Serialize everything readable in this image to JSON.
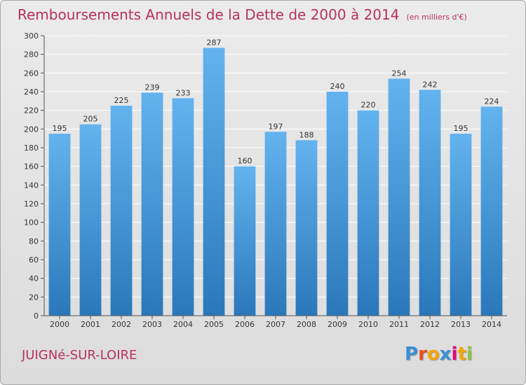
{
  "header": {
    "title": "Remboursements Annuels de la Dette de 2000 à 2014",
    "unit": "(en milliers d'€)"
  },
  "footer": {
    "commune": "JUIGNé-SUR-LOIRE",
    "logo_text": "Proxiti",
    "logo_colors": [
      "#3a8fd6",
      "#e94e1b",
      "#f7a600",
      "#3a8fd6",
      "#e6007e",
      "#f7a600",
      "#8cc63f"
    ]
  },
  "colors": {
    "title": "#b6325c",
    "bar_top": "#63b3ef",
    "bar_bottom": "#2a78ba",
    "grid": "#ffffff",
    "axis": "#555555"
  },
  "chart_data": {
    "type": "bar",
    "title": "Remboursements Annuels de la Dette de 2000 à 2014",
    "subtitle": "(en milliers d'€)",
    "xlabel": "",
    "ylabel": "",
    "categories": [
      "2000",
      "2001",
      "2002",
      "2003",
      "2004",
      "2005",
      "2006",
      "2007",
      "2008",
      "2009",
      "2010",
      "2011",
      "2012",
      "2013",
      "2014"
    ],
    "values": [
      195,
      205,
      225,
      239,
      233,
      287,
      160,
      197,
      188,
      240,
      220,
      254,
      242,
      195,
      224
    ],
    "ylim": [
      0,
      300
    ],
    "yticks": [
      0,
      20,
      40,
      60,
      80,
      100,
      120,
      140,
      160,
      180,
      200,
      220,
      240,
      260,
      280,
      300
    ],
    "grid": true,
    "data_labels": true
  }
}
